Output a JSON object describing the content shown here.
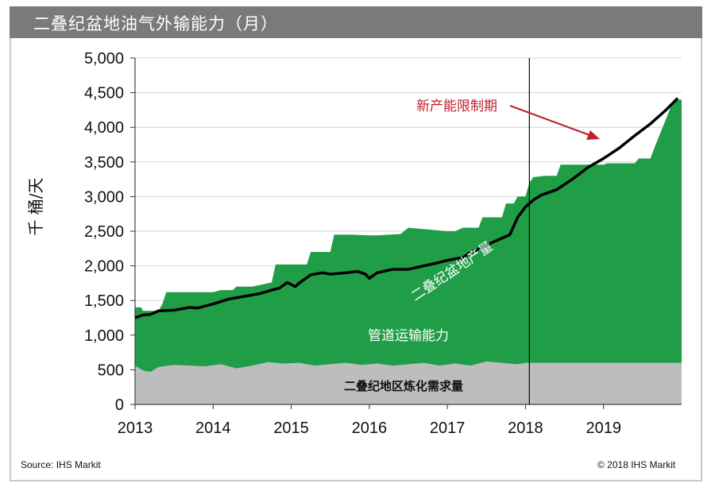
{
  "title": "二叠纪盆地油气外输能力（月）",
  "source": "Source: IHS Markit",
  "copyright": "© 2018 IHS Markit",
  "colors": {
    "pipeline": "#1f9e47",
    "refining": "#bdbdbd",
    "production": "#000000",
    "annotation": "#c0202c",
    "titlebar": "#7a7a7a"
  },
  "chart_data": {
    "type": "area",
    "ylabel": "千 桶/天",
    "xlabel": "",
    "ylim": [
      0,
      5000
    ],
    "yticks": [
      "0",
      "500",
      "1,000",
      "1,500",
      "2,000",
      "2,500",
      "3,000",
      "3,500",
      "4,000",
      "4,500",
      "5,000"
    ],
    "xticks": [
      "2013",
      "2014",
      "2015",
      "2016",
      "2017",
      "2018",
      "2019"
    ],
    "grid": true,
    "x_start": 2013,
    "x_end": 2020,
    "series": [
      {
        "name": "管道运输能力",
        "kind": "area",
        "x": [
          2013.0,
          2013.08,
          2013.1,
          2013.3,
          2013.35,
          2013.4,
          2014.0,
          2014.1,
          2014.25,
          2014.3,
          2014.5,
          2014.75,
          2014.8,
          2015.2,
          2015.25,
          2015.5,
          2015.55,
          2015.8,
          2016.0,
          2016.1,
          2016.4,
          2016.5,
          2017.0,
          2017.1,
          2017.2,
          2017.4,
          2017.45,
          2017.7,
          2017.75,
          2017.85,
          2017.9,
          2018.0,
          2018.05,
          2018.1,
          2018.25,
          2018.4,
          2018.45,
          2019.0,
          2019.05,
          2019.4,
          2019.45,
          2019.6,
          2019.65,
          2019.9,
          2020.0
        ],
        "values": [
          1400,
          1400,
          1350,
          1350,
          1450,
          1620,
          1620,
          1650,
          1650,
          1700,
          1700,
          1760,
          2020,
          2020,
          2200,
          2200,
          2450,
          2450,
          2440,
          2440,
          2460,
          2550,
          2500,
          2500,
          2550,
          2550,
          2700,
          2700,
          2900,
          2900,
          3000,
          3000,
          3200,
          3280,
          3300,
          3300,
          3460,
          3460,
          3480,
          3480,
          3550,
          3550,
          3700,
          4400,
          4400
        ]
      },
      {
        "name": "二叠纪盆地产量",
        "kind": "line",
        "x": [
          2013.0,
          2013.1,
          2013.2,
          2013.3,
          2013.5,
          2013.7,
          2013.8,
          2014.0,
          2014.2,
          2014.4,
          2014.5,
          2014.6,
          2014.75,
          2014.85,
          2014.95,
          2015.05,
          2015.1,
          2015.25,
          2015.4,
          2015.5,
          2015.7,
          2015.85,
          2015.95,
          2016.0,
          2016.1,
          2016.3,
          2016.5,
          2016.7,
          2016.9,
          2017.0,
          2017.1,
          2017.2,
          2017.3,
          2017.4,
          2017.5,
          2017.6,
          2017.7,
          2017.8,
          2017.9,
          2018.0,
          2018.1,
          2018.2,
          2018.4,
          2018.6,
          2018.8,
          2019.0,
          2019.2,
          2019.4,
          2019.6,
          2019.8,
          2019.95
        ],
        "values": [
          1250,
          1290,
          1300,
          1350,
          1360,
          1400,
          1390,
          1450,
          1520,
          1560,
          1580,
          1600,
          1650,
          1680,
          1760,
          1700,
          1750,
          1870,
          1900,
          1880,
          1900,
          1920,
          1880,
          1820,
          1900,
          1950,
          1950,
          2000,
          2050,
          2080,
          2100,
          2120,
          2200,
          2240,
          2300,
          2350,
          2400,
          2450,
          2700,
          2850,
          2950,
          3020,
          3100,
          3250,
          3420,
          3550,
          3700,
          3880,
          4050,
          4250,
          4420
        ]
      },
      {
        "name": "二叠纪地区炼化需求量",
        "kind": "area",
        "x": [
          2013.0,
          2013.1,
          2013.2,
          2013.3,
          2013.5,
          2013.7,
          2013.9,
          2014.1,
          2014.3,
          2014.5,
          2014.7,
          2014.9,
          2015.1,
          2015.3,
          2015.5,
          2015.7,
          2015.9,
          2016.1,
          2016.3,
          2016.5,
          2016.7,
          2016.9,
          2017.1,
          2017.3,
          2017.5,
          2017.7,
          2017.9,
          2018.0,
          2020.0
        ],
        "values": [
          560,
          490,
          470,
          540,
          570,
          560,
          550,
          580,
          520,
          560,
          610,
          590,
          600,
          560,
          580,
          600,
          570,
          590,
          560,
          580,
          600,
          560,
          590,
          560,
          620,
          600,
          580,
          600,
          600
        ]
      }
    ],
    "labels": {
      "pipeline": "管道运输能力",
      "production": "二叠纪盆地产量",
      "refining": "二叠纪地区炼化需求量"
    },
    "annotations": [
      {
        "text": "新产能限制期",
        "x": 2018.05
      }
    ]
  }
}
